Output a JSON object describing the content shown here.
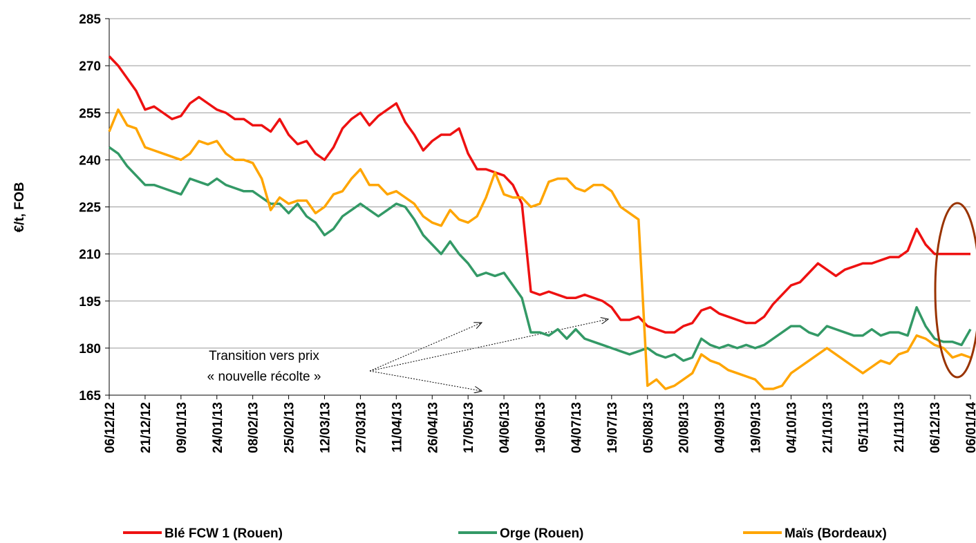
{
  "chart_data": {
    "type": "line",
    "ylabel": "€/t, FOB",
    "annotation": [
      "Transition vers prix",
      "« nouvelle récolte »"
    ],
    "ylim": [
      165,
      285
    ],
    "yticks": [
      165,
      180,
      195,
      210,
      225,
      240,
      255,
      270,
      285
    ],
    "grid": true,
    "legend": "bottom",
    "categories": [
      "06/12/12",
      null,
      null,
      null,
      "21/12/12",
      null,
      null,
      null,
      "09/01/13",
      null,
      null,
      null,
      "24/01/13",
      null,
      null,
      null,
      "08/02/13",
      null,
      null,
      null,
      "25/02/13",
      null,
      null,
      null,
      "12/03/13",
      null,
      null,
      null,
      "27/03/13",
      null,
      null,
      null,
      "11/04/13",
      null,
      null,
      null,
      "26/04/13",
      null,
      null,
      null,
      "17/05/13",
      null,
      null,
      null,
      "04/06/13",
      null,
      null,
      null,
      "19/06/13",
      null,
      null,
      null,
      "04/07/13",
      null,
      null,
      null,
      "19/07/13",
      null,
      null,
      null,
      "05/08/13",
      null,
      null,
      null,
      "20/08/13",
      null,
      null,
      null,
      "04/09/13",
      null,
      null,
      null,
      "19/09/13",
      null,
      null,
      null,
      "04/10/13",
      null,
      null,
      null,
      "21/10/13",
      null,
      null,
      null,
      "05/11/13",
      null,
      null,
      null,
      "21/11/13",
      null,
      null,
      null,
      "06/12/13",
      null,
      null,
      null,
      "06/01/14"
    ],
    "series": [
      {
        "name": "Blé FCW 1 (Rouen)",
        "color": "#ee1111",
        "values": [
          273,
          270,
          266,
          262,
          256,
          257,
          255,
          253,
          254,
          258,
          260,
          258,
          256,
          255,
          253,
          253,
          251,
          251,
          249,
          253,
          248,
          245,
          246,
          242,
          240,
          244,
          250,
          253,
          255,
          251,
          254,
          256,
          258,
          252,
          248,
          243,
          246,
          248,
          248,
          250,
          242,
          237,
          237,
          236,
          235,
          232,
          226,
          198,
          197,
          198,
          197,
          196,
          196,
          197,
          196,
          195,
          193,
          189,
          189,
          190,
          187,
          186,
          185,
          185,
          187,
          188,
          192,
          193,
          191,
          190,
          189,
          188,
          188,
          190,
          194,
          197,
          200,
          201,
          204,
          207,
          205,
          203,
          205,
          206,
          207,
          207,
          208,
          209,
          209,
          211,
          218,
          213,
          210,
          210,
          210,
          210,
          210
        ]
      },
      {
        "name": "Orge (Rouen)",
        "color": "#339966",
        "values": [
          244,
          242,
          238,
          235,
          232,
          232,
          231,
          230,
          229,
          234,
          233,
          232,
          234,
          232,
          231,
          230,
          230,
          228,
          226,
          226,
          223,
          226,
          222,
          220,
          216,
          218,
          222,
          224,
          226,
          224,
          222,
          224,
          226,
          225,
          221,
          216,
          213,
          210,
          214,
          210,
          207,
          203,
          204,
          203,
          204,
          200,
          196,
          185,
          185,
          184,
          186,
          183,
          186,
          183,
          182,
          181,
          180,
          179,
          178,
          179,
          180,
          178,
          177,
          178,
          176,
          177,
          183,
          181,
          180,
          181,
          180,
          181,
          180,
          181,
          183,
          185,
          187,
          187,
          185,
          184,
          187,
          186,
          185,
          184,
          184,
          186,
          184,
          185,
          185,
          184,
          193,
          187,
          183,
          182,
          182,
          181,
          186
        ]
      },
      {
        "name": "Maïs (Bordeaux)",
        "color": "#ffa500",
        "values": [
          249,
          256,
          251,
          250,
          244,
          243,
          242,
          241,
          240,
          242,
          246,
          245,
          246,
          242,
          240,
          240,
          239,
          234,
          224,
          228,
          226,
          227,
          227,
          223,
          225,
          229,
          230,
          234,
          237,
          232,
          232,
          229,
          230,
          228,
          226,
          222,
          220,
          219,
          224,
          221,
          220,
          222,
          228,
          236,
          229,
          228,
          228,
          225,
          226,
          233,
          234,
          234,
          231,
          230,
          232,
          232,
          230,
          225,
          223,
          221,
          168,
          170,
          167,
          168,
          170,
          172,
          178,
          176,
          175,
          173,
          172,
          171,
          170,
          167,
          167,
          168,
          172,
          174,
          176,
          178,
          180,
          178,
          176,
          174,
          172,
          174,
          176,
          175,
          178,
          179,
          184,
          183,
          181,
          180,
          177,
          178,
          177
        ]
      }
    ]
  }
}
